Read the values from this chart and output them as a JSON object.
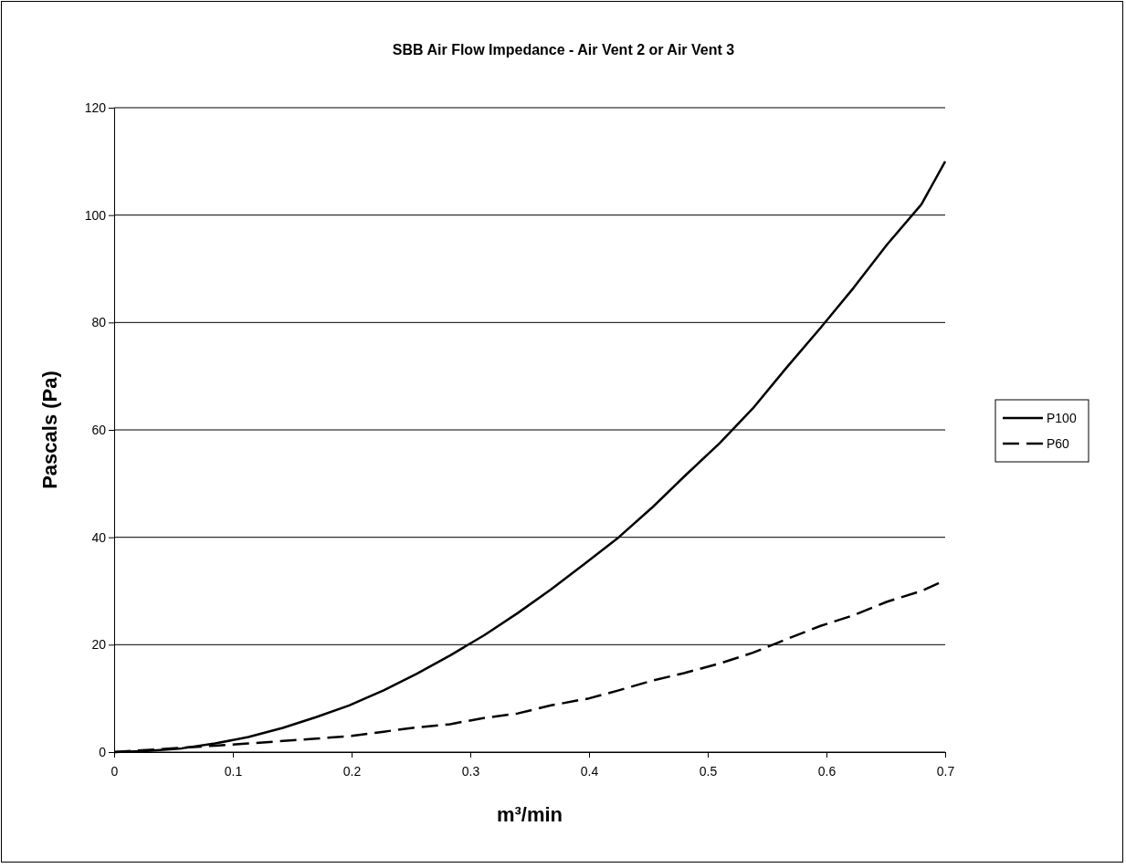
{
  "chart_data": {
    "type": "line",
    "title": "SBB Air Flow Impedance - Air Vent 2 or Air Vent 3",
    "xlabel": "m³/min",
    "ylabel": "Pascals (Pa)",
    "xlim": [
      0,
      0.7
    ],
    "xticks": [
      0,
      0.1,
      0.2,
      0.3,
      0.4,
      0.5,
      0.6,
      0.7
    ],
    "ylim": [
      0,
      120
    ],
    "yticks": [
      0,
      20,
      40,
      60,
      80,
      100,
      120
    ],
    "grid": "y",
    "legend": "right",
    "marker": "none",
    "series": [
      {
        "name": "P100",
        "color": "#000000",
        "line_style": "solid",
        "x": [
          0,
          0.028,
          0.057,
          0.085,
          0.113,
          0.142,
          0.17,
          0.198,
          0.227,
          0.255,
          0.283,
          0.312,
          0.34,
          0.368,
          0.396,
          0.425,
          0.453,
          0.481,
          0.51,
          0.538,
          0.566,
          0.595,
          0.623,
          0.651,
          0.68,
          0.7
        ],
        "values": [
          0,
          0.2,
          0.7,
          1.6,
          2.8,
          4.5,
          6.5,
          8.7,
          11.5,
          14.6,
          18,
          21.8,
          25.9,
          30.3,
          35,
          40,
          45.5,
          51.5,
          57.5,
          64,
          71.5,
          79,
          86.5,
          94.5,
          102,
          110
        ]
      },
      {
        "name": "P60",
        "color": "#000000",
        "line_style": "dashed",
        "x": [
          0,
          0.057,
          0.085,
          0.113,
          0.17,
          0.2,
          0.227,
          0.255,
          0.283,
          0.31,
          0.34,
          0.368,
          0.4,
          0.425,
          0.453,
          0.48,
          0.51,
          0.538,
          0.566,
          0.595,
          0.623,
          0.651,
          0.68,
          0.7
        ],
        "values": [
          0,
          0.8,
          1.2,
          1.6,
          2.5,
          3,
          3.8,
          4.6,
          5.2,
          6.3,
          7.2,
          8.7,
          10,
          11.5,
          13.3,
          14.7,
          16.5,
          18.5,
          21,
          23.5,
          25.5,
          28,
          30,
          32
        ]
      }
    ]
  }
}
